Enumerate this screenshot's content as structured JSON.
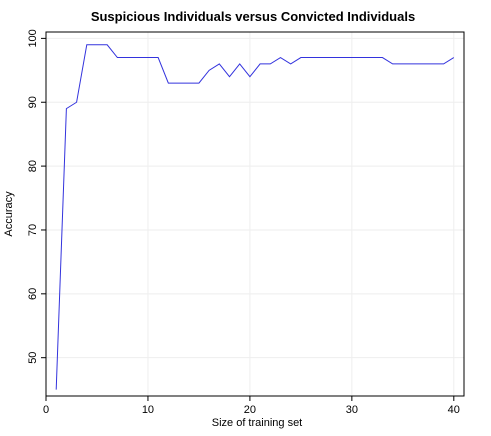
{
  "chart_data": {
    "type": "line",
    "title": "Suspicious Individuals versus Convicted Individuals",
    "xlabel": "Size of training set",
    "ylabel": "Accuracy",
    "xlim": [
      0,
      41
    ],
    "ylim": [
      44,
      101
    ],
    "xticks": [
      0,
      10,
      20,
      30,
      40
    ],
    "yticks": [
      50,
      60,
      70,
      80,
      90,
      100
    ],
    "grid": true,
    "line_color": "#3333dd",
    "grid_color": "#eeeeee",
    "series": [
      {
        "x": [
          1,
          2,
          3,
          4,
          5,
          6,
          7,
          8,
          9,
          10,
          11,
          12,
          13,
          14,
          15,
          16,
          17,
          18,
          19,
          20,
          21,
          22,
          23,
          24,
          25,
          26,
          27,
          28,
          29,
          30,
          31,
          32,
          33,
          34,
          35,
          36,
          37,
          38,
          39,
          40
        ],
        "values": [
          45,
          89,
          90,
          99,
          99,
          99,
          97,
          97,
          97,
          97,
          97,
          93,
          93,
          93,
          93,
          95,
          96,
          94,
          96,
          94,
          96,
          96,
          97,
          96,
          97,
          97,
          97,
          97,
          97,
          97,
          97,
          97,
          97,
          96,
          96,
          96,
          96,
          96,
          96,
          97
        ]
      }
    ]
  }
}
